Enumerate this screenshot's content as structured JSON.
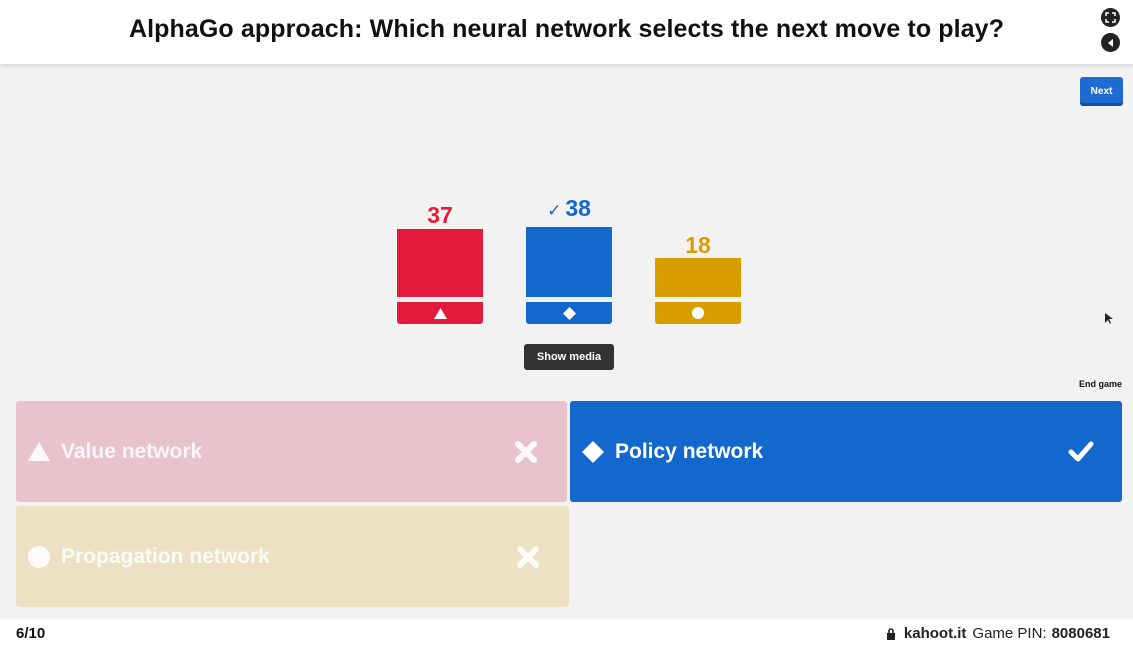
{
  "header": {
    "title": "AlphaGo approach: Which neural network selects the next move to play?",
    "fullscreen_icon": "fullscreen-icon",
    "sound_icon": "sound-icon"
  },
  "controls": {
    "next_label": "Next",
    "show_media_label": "Show media",
    "end_game_label": "End game"
  },
  "results": {
    "bars": [
      {
        "count": "37",
        "color": "#e21b3c",
        "shape": "triangle",
        "correct": false
      },
      {
        "count": "38",
        "color": "#1368ce",
        "shape": "diamond",
        "correct": true,
        "check": "✓"
      },
      {
        "count": "18",
        "color": "#d89e00",
        "shape": "circle",
        "correct": false
      }
    ]
  },
  "answers": [
    {
      "label": "Value network",
      "shape": "triangle",
      "correct": false,
      "color": "#e9c3cc"
    },
    {
      "label": "Policy network",
      "shape": "diamond",
      "correct": true,
      "color": "#1368ce"
    },
    {
      "label": "Propagation network",
      "shape": "circle",
      "correct": false,
      "color": "#ede1c4"
    }
  ],
  "footer": {
    "question_counter": "6/10",
    "brand": "kahoot.it",
    "pin_label": "Game PIN:",
    "pin": "8080681",
    "lock_icon": "lock-icon"
  }
}
